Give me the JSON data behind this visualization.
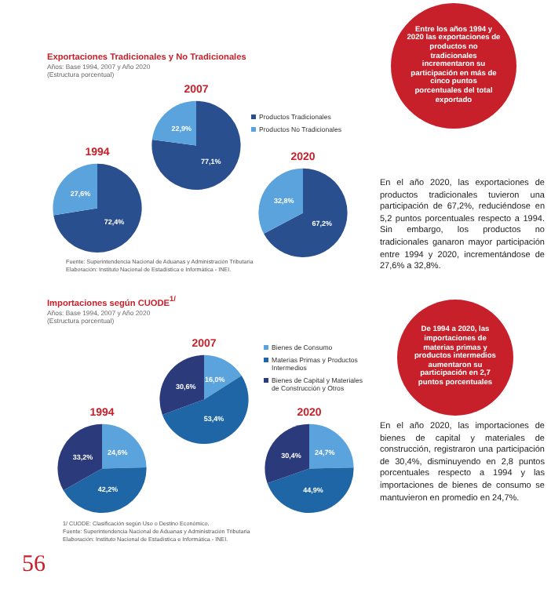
{
  "chart_data": [
    {
      "type": "other",
      "title": "Exportaciones Tradicionales y No Tradicionales",
      "subtitle": "Años: Base 1994, 2007 y Año 2020\n(Estructura porcentual)",
      "annotations": [
        "Fuente: Superintendencia Nacional de Aduanas y Administración Tributaria\nElaboración: Instituto Nacional de Estadística e Informática - INEI."
      ]
    },
    {
      "type": "pie",
      "title": "1994",
      "categories": [
        null,
        null
      ],
      "values": [
        72.4,
        27.6
      ],
      "colors": [
        "#2a4f8f",
        "#5aa3dd"
      ],
      "value_labels": [
        "72,4%",
        "27,6%"
      ],
      "legend": false
    },
    {
      "type": "pie",
      "title": "2007",
      "categories": [
        "Productos Tradicionales",
        "Productos No Tradicionales"
      ],
      "values": [
        77.1,
        22.9
      ],
      "colors": [
        "#2a4f8f",
        "#5aa3dd"
      ],
      "value_labels": [
        "77,1%",
        "22,9%"
      ],
      "legend": "right"
    },
    {
      "type": "pie",
      "title": "2020",
      "categories": [
        null,
        null
      ],
      "values": [
        67.2,
        32.8
      ],
      "colors": [
        "#2a4f8f",
        "#5aa3dd"
      ],
      "value_labels": [
        "67,2%",
        "32,8%"
      ],
      "legend": false
    },
    {
      "type": "other",
      "annotations": [
        "Entre los años 1994 y 2020 las exportaciones de productos no tradicionales incrementaron su participación en más de cinco puntos porcentuales del total exportado",
        "En el año 2020, las exportaciones de productos tradicionales tuvieron una participación de 67,2%, reduciéndose en 5,2 puntos porcentuales respecto a 1994. Sin embargo, los productos no tradicionales ganaron mayor participación entre 1994 y 2020, incrementándose de 27,6% a 32,8%."
      ]
    },
    {
      "type": "other",
      "title": "Importaciones según CUODE$^{1/}$",
      "subtitle": "Años: Base 1994, 2007 y Año 2020\n(Estructura porcentual)",
      "annotations": [
        "1/ CUODE: Clasificación según Uso o Destino Económico.\nFuente: Superintendencia Nacional de Aduanas y Administración Tributaria\nElaboración: Instituto Nacional de Estadística e Informática - INEI."
      ]
    },
    {
      "type": "pie",
      "title": "1994",
      "categories": [
        null,
        null,
        null
      ],
      "values": [
        24.6,
        42.2,
        33.2
      ],
      "colors": [
        "#5aa3dd",
        "#1f66a6",
        "#2b3a7a"
      ],
      "value_labels": [
        "24,6%",
        "42,2%",
        "33,2%"
      ],
      "legend": false
    },
    {
      "type": "pie",
      "title": "2007",
      "categories": [
        "Bienes de Consumo",
        "Materias Primas y Productos Intermedios",
        "Bienes de Capital y Materiales de Construcción y Otros"
      ],
      "values": [
        16.0,
        53.4,
        30.6
      ],
      "colors": [
        "#5aa3dd",
        "#1f66a6",
        "#2b3a7a"
      ],
      "value_labels": [
        "16,0%",
        "53,4%",
        "30,6%"
      ],
      "legend": "right"
    },
    {
      "type": "pie",
      "title": "2020",
      "categories": [
        null,
        null,
        null
      ],
      "values": [
        24.7,
        44.9,
        30.4
      ],
      "colors": [
        "#5aa3dd",
        "#1f66a6",
        "#2b3a7a"
      ],
      "value_labels": [
        "24,7%",
        "44,9%",
        "30,4%"
      ],
      "legend": false
    },
    {
      "type": "other",
      "annotations": [
        "De 1994 a 2020, las importaciones de materias primas y productos intermedios aumentaron su participación en 2,7 puntos porcentuales",
        "En el año 2020, las importaciones de bienes de capital y materiales de construcción, registraron una participación de 30,4%, disminuyendo en 2,8 puntos porcentuales respecto a 1994 y las importaciones de bienes de consumo se mantuvieron en promedio en 24,7%.",
        "56"
      ]
    }
  ]
}
